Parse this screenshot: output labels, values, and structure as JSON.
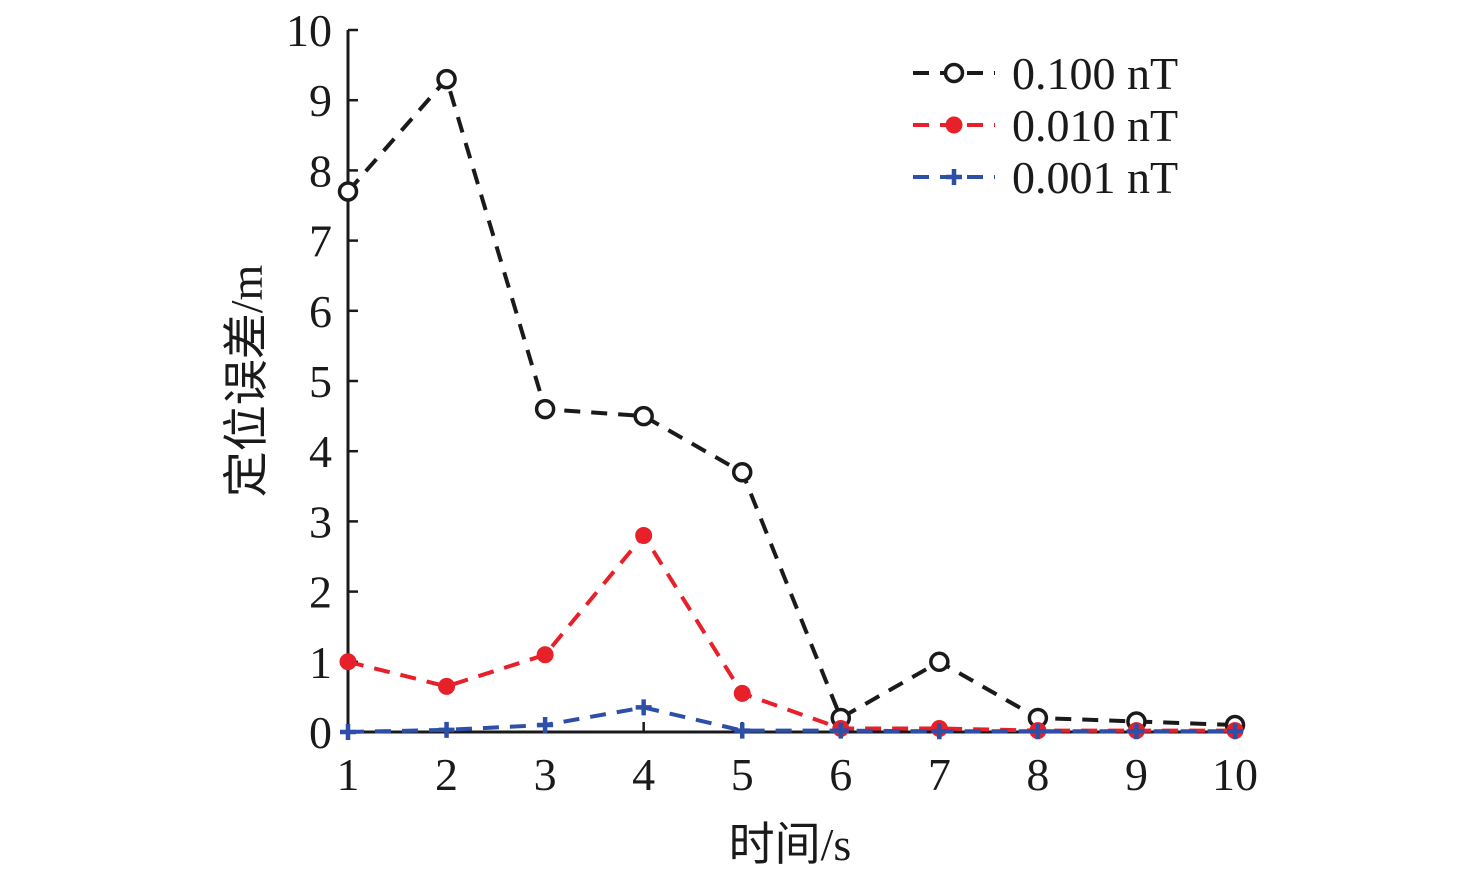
{
  "chart_data": {
    "type": "line",
    "title": "",
    "xlabel": "时间/s",
    "ylabel": "定位误差/m",
    "x": [
      1,
      2,
      3,
      4,
      5,
      6,
      7,
      8,
      9,
      10
    ],
    "xlim": [
      1,
      10
    ],
    "ylim": [
      0,
      10
    ],
    "xticks": [
      1,
      2,
      3,
      4,
      5,
      6,
      7,
      8,
      9,
      10
    ],
    "yticks": [
      0,
      1,
      2,
      3,
      4,
      5,
      6,
      7,
      8,
      9,
      10
    ],
    "grid": false,
    "legend_position": "top-right",
    "series": [
      {
        "name": "0.100 nT",
        "color": "#1a1a1a",
        "marker": "open-circle",
        "line_style": "dashed",
        "values": [
          7.7,
          9.3,
          4.6,
          4.5,
          3.7,
          0.2,
          1.0,
          0.2,
          0.15,
          0.1
        ]
      },
      {
        "name": "0.010 nT",
        "color": "#e8202a",
        "marker": "filled-circle",
        "line_style": "dashed",
        "values": [
          1.0,
          0.65,
          1.1,
          2.8,
          0.55,
          0.05,
          0.05,
          0.02,
          0.02,
          0.02
        ]
      },
      {
        "name": "0.001 nT",
        "color": "#2e4fa8",
        "marker": "plus",
        "line_style": "dashed",
        "values": [
          0.0,
          0.03,
          0.1,
          0.35,
          0.02,
          0.02,
          0.01,
          0.01,
          0.01,
          0.01
        ]
      }
    ]
  }
}
